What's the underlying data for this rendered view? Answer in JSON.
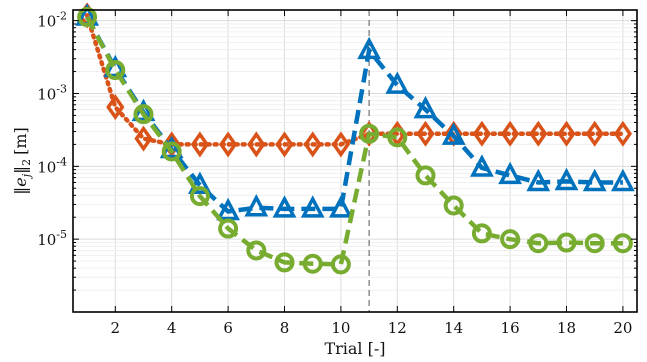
{
  "chart_data": {
    "type": "line",
    "xlabel": "Trial [-]",
    "ylabel": "‖e_j‖₂ [m]",
    "ylabel_parts": {
      "norm_open": "‖",
      "e": "e",
      "sub_j": "j",
      "norm_close": "‖",
      "sub_2": "2",
      "unit": "[m]"
    },
    "xlim": [
      0.5,
      20.5
    ],
    "ylim": [
      1e-06,
      0.014
    ],
    "yscale": "log",
    "grid": true,
    "xticks": [
      2,
      4,
      6,
      8,
      10,
      12,
      14,
      16,
      18,
      20
    ],
    "xtick_labels": [
      "2",
      "4",
      "6",
      "8",
      "10",
      "12",
      "14",
      "16",
      "18",
      "20"
    ],
    "yticks": [
      {
        "value": 0.01,
        "base": "10",
        "exp": "-2"
      },
      {
        "value": 0.001,
        "base": "10",
        "exp": "-3"
      },
      {
        "value": 0.0001,
        "base": "10",
        "exp": "-4"
      },
      {
        "value": 1e-05,
        "base": "10",
        "exp": "-5"
      }
    ],
    "vline_x": 11,
    "series": [
      {
        "marker": "diamond",
        "line": "dotted",
        "color": "#D95319",
        "x": [
          1,
          2,
          3,
          4,
          5,
          6,
          7,
          8,
          9,
          10,
          11,
          12,
          13,
          14,
          15,
          16,
          17,
          18,
          19,
          20
        ],
        "values": [
          0.0118,
          0.00065,
          0.00024,
          0.0002,
          0.0002,
          0.0002,
          0.0002,
          0.0002,
          0.0002,
          0.0002,
          0.00028,
          0.00028,
          0.00028,
          0.00028,
          0.00028,
          0.00028,
          0.00028,
          0.00028,
          0.00028,
          0.00028
        ]
      },
      {
        "marker": "triangle",
        "line": "dashed",
        "color": "#0072BD",
        "x": [
          1,
          2,
          3,
          4,
          5,
          6,
          7,
          8,
          9,
          10,
          11,
          12,
          13,
          14,
          15,
          16,
          17,
          18,
          19,
          20
        ],
        "values": [
          0.0112,
          0.0022,
          0.00055,
          0.00017,
          5.5e-05,
          2.4e-05,
          2.7e-05,
          2.6e-05,
          2.6e-05,
          2.6e-05,
          0.0039,
          0.0013,
          0.0006,
          0.00026,
          9.5e-05,
          7.5e-05,
          6e-05,
          6.2e-05,
          6e-05,
          6e-05
        ]
      },
      {
        "marker": "circle",
        "line": "dashed",
        "color": "#77AC30",
        "x": [
          1,
          2,
          3,
          4,
          5,
          6,
          7,
          8,
          9,
          10,
          11,
          12,
          13,
          14,
          15,
          16,
          17,
          18,
          19,
          20
        ],
        "values": [
          0.0112,
          0.0021,
          0.00052,
          0.00016,
          3.9e-05,
          1.4e-05,
          7e-06,
          4.8e-06,
          4.6e-06,
          4.5e-06,
          0.00028,
          0.00025,
          7.5e-05,
          2.9e-05,
          1.2e-05,
          1e-05,
          8.8e-06,
          9e-06,
          8.8e-06,
          8.8e-06
        ]
      }
    ]
  }
}
